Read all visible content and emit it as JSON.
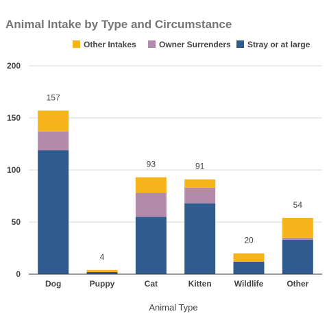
{
  "chart_data": {
    "type": "bar",
    "stacked": true,
    "title": "Animal Intake by Type and Circumstance",
    "xlabel": "Animal Type",
    "ylabel": "",
    "ylim": [
      0,
      200
    ],
    "yticks": [
      0,
      50,
      100,
      150,
      200
    ],
    "grid": true,
    "legend_position": "top-right",
    "categories": [
      "Dog",
      "Puppy",
      "Cat",
      "Kitten",
      "Wildlife",
      "Other"
    ],
    "series": [
      {
        "name": "Stray or at large",
        "color": "#2f5b8f",
        "values": [
          119,
          2,
          55,
          68,
          12,
          33
        ]
      },
      {
        "name": "Owner Surrenders",
        "color": "#b48aab",
        "values": [
          18,
          0,
          23,
          15,
          0,
          2
        ]
      },
      {
        "name": "Other Intakes",
        "color": "#f4b41a",
        "values": [
          20,
          2,
          15,
          8,
          8,
          19
        ]
      }
    ],
    "totals": [
      "157",
      "4",
      "93",
      "91",
      "20",
      "54"
    ],
    "legend_order": [
      "Other Intakes",
      "Owner Surrenders",
      "Stray or at large"
    ]
  }
}
